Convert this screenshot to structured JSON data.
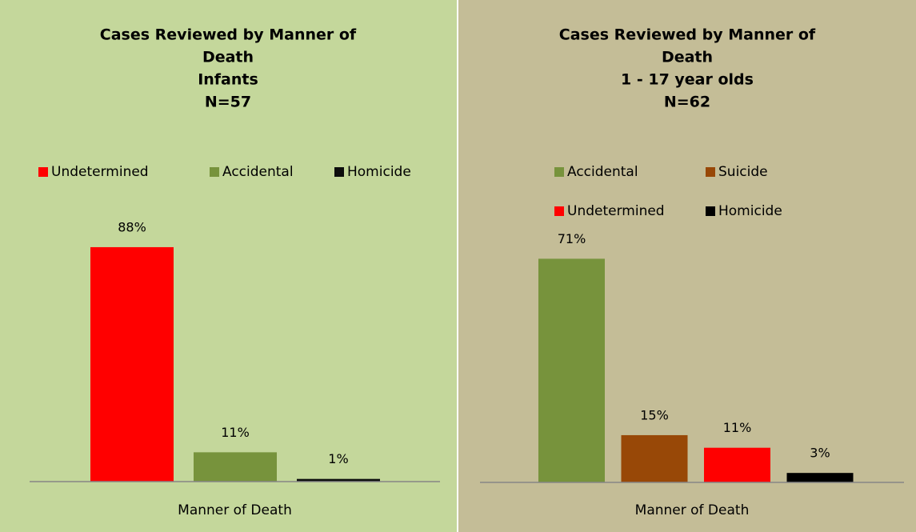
{
  "chart_data": [
    {
      "type": "bar",
      "title": [
        "Cases Reviewed by Manner of",
        "Death",
        "Infants",
        "N=57"
      ],
      "categories": [
        "Manner of Death"
      ],
      "background": "#c4d79b",
      "ylim": [
        0,
        100
      ],
      "series": [
        {
          "name": "Undetermined",
          "color": "#ff0000",
          "values": [
            88
          ],
          "value_labels": [
            "88%"
          ]
        },
        {
          "name": "Accidental",
          "color": "#77933c",
          "values": [
            11
          ],
          "value_labels": [
            "11%"
          ]
        },
        {
          "name": "Homicide",
          "color": "#0d0d0d",
          "values": [
            1
          ],
          "value_labels": [
            "1%"
          ]
        }
      ]
    },
    {
      "type": "bar",
      "title": [
        "Cases Reviewed by Manner of",
        "Death",
        "1 - 17 year olds",
        "N=62"
      ],
      "categories": [
        "Manner of Death"
      ],
      "background": "#c4bd97",
      "ylim": [
        0,
        80
      ],
      "series": [
        {
          "name": "Accidental",
          "color": "#77933c",
          "values": [
            71
          ],
          "value_labels": [
            "71%"
          ]
        },
        {
          "name": "Suicide",
          "color": "#984807",
          "values": [
            15
          ],
          "value_labels": [
            "15%"
          ]
        },
        {
          "name": "Undetermined",
          "color": "#ff0000",
          "values": [
            11
          ],
          "value_labels": [
            "11%"
          ]
        },
        {
          "name": "Homicide",
          "color": "#000000",
          "values": [
            3
          ],
          "value_labels": [
            "3%"
          ]
        }
      ]
    }
  ]
}
